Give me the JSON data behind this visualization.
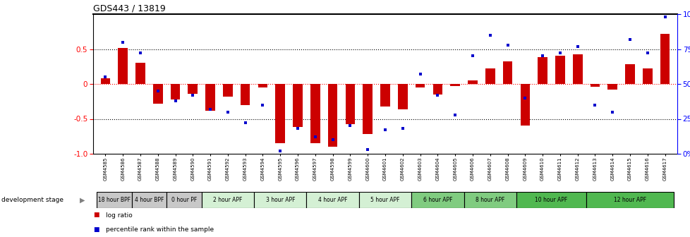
{
  "title": "GDS443 / 13819",
  "samples": [
    "GSM4585",
    "GSM4586",
    "GSM4587",
    "GSM4588",
    "GSM4589",
    "GSM4590",
    "GSM4591",
    "GSM4592",
    "GSM4593",
    "GSM4594",
    "GSM4595",
    "GSM4596",
    "GSM4597",
    "GSM4598",
    "GSM4599",
    "GSM4600",
    "GSM4601",
    "GSM4602",
    "GSM4603",
    "GSM4604",
    "GSM4605",
    "GSM4606",
    "GSM4607",
    "GSM4608",
    "GSM4609",
    "GSM4610",
    "GSM4611",
    "GSM4612",
    "GSM4613",
    "GSM4614",
    "GSM4615",
    "GSM4616",
    "GSM4617"
  ],
  "log_ratio": [
    0.08,
    0.52,
    0.3,
    -0.28,
    -0.22,
    -0.14,
    -0.38,
    -0.18,
    -0.3,
    -0.05,
    -0.85,
    -0.62,
    -0.85,
    -0.9,
    -0.58,
    -0.72,
    -0.32,
    -0.36,
    -0.05,
    -0.15,
    -0.03,
    0.05,
    0.22,
    0.32,
    -0.6,
    0.38,
    0.4,
    0.42,
    -0.04,
    -0.08,
    0.28,
    0.22,
    0.72
  ],
  "percentile": [
    55,
    80,
    72,
    45,
    38,
    42,
    32,
    30,
    22,
    35,
    2,
    18,
    12,
    10,
    20,
    3,
    17,
    18,
    57,
    42,
    28,
    70,
    85,
    78,
    40,
    70,
    72,
    77,
    35,
    30,
    82,
    72,
    98
  ],
  "stages": [
    {
      "label": "18 hour BPF",
      "start": 0,
      "end": 2,
      "color": "#c8c8c8"
    },
    {
      "label": "4 hour BPF",
      "start": 2,
      "end": 4,
      "color": "#c8c8c8"
    },
    {
      "label": "0 hour PF",
      "start": 4,
      "end": 6,
      "color": "#c8c8c8"
    },
    {
      "label": "2 hour APF",
      "start": 6,
      "end": 9,
      "color": "#d4f0d4"
    },
    {
      "label": "3 hour APF",
      "start": 9,
      "end": 12,
      "color": "#d4f0d4"
    },
    {
      "label": "4 hour APF",
      "start": 12,
      "end": 15,
      "color": "#d4f0d4"
    },
    {
      "label": "5 hour APF",
      "start": 15,
      "end": 18,
      "color": "#d4f0d4"
    },
    {
      "label": "6 hour APF",
      "start": 18,
      "end": 21,
      "color": "#80cc80"
    },
    {
      "label": "8 hour APF",
      "start": 21,
      "end": 24,
      "color": "#80cc80"
    },
    {
      "label": "10 hour APF",
      "start": 24,
      "end": 28,
      "color": "#50b850"
    },
    {
      "label": "12 hour APF",
      "start": 28,
      "end": 33,
      "color": "#50b850"
    }
  ],
  "bar_color": "#cc0000",
  "dot_color": "#0000cc",
  "ylim_left": [
    -1.0,
    1.0
  ],
  "ylim_right": [
    0,
    100
  ],
  "yticks_left": [
    -1.0,
    -0.5,
    0.0,
    0.5
  ],
  "yticks_right": [
    0,
    25,
    50,
    75,
    100
  ],
  "background_color": "#ffffff",
  "title_fontsize": 9,
  "dev_stage_label": "development stage",
  "legend_items": [
    {
      "color": "#cc0000",
      "label": "log ratio"
    },
    {
      "color": "#0000cc",
      "label": "percentile rank within the sample"
    }
  ]
}
